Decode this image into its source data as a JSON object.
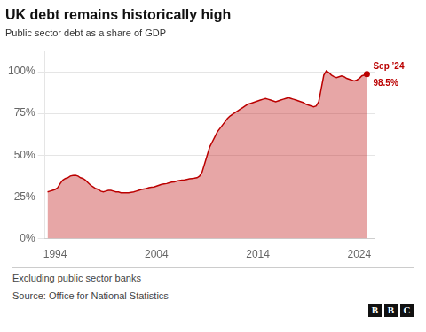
{
  "chart_data": {
    "type": "area",
    "title": "UK debt remains historically high",
    "subtitle": "Public sector debt as a share of GDP",
    "footnote": "Excluding public sector banks",
    "source": "Source: Office for National Statistics",
    "logo": "BBC",
    "annotations": [
      "Sep ’24",
      "98.5%"
    ],
    "color": "#bb0000",
    "grid": "y",
    "xlim": [
      1993.0,
      2025.5
    ],
    "xticks": [
      1994,
      2004,
      2014,
      2024
    ],
    "ylim": [
      0,
      112
    ],
    "yticks": [
      {
        "value": 0,
        "label": "0%"
      },
      {
        "value": 25,
        "label": "25%"
      },
      {
        "value": 50,
        "label": "50%"
      },
      {
        "value": 75,
        "label": "75%"
      },
      {
        "value": 100,
        "label": "100%"
      }
    ],
    "x": [
      1993.25,
      1993.5,
      1993.75,
      1994.0,
      1994.25,
      1994.5,
      1994.75,
      1995.0,
      1995.25,
      1995.5,
      1995.75,
      1996.0,
      1996.25,
      1996.5,
      1996.75,
      1997.0,
      1997.25,
      1997.5,
      1997.75,
      1998.0,
      1998.25,
      1998.5,
      1998.75,
      1999.0,
      1999.25,
      1999.5,
      1999.75,
      2000.0,
      2000.25,
      2000.5,
      2000.75,
      2001.0,
      2001.25,
      2001.5,
      2001.75,
      2002.0,
      2002.25,
      2002.5,
      2002.75,
      2003.0,
      2003.25,
      2003.5,
      2003.75,
      2004.0,
      2004.25,
      2004.5,
      2004.75,
      2005.0,
      2005.25,
      2005.5,
      2005.75,
      2006.0,
      2006.25,
      2006.5,
      2006.75,
      2007.0,
      2007.25,
      2007.5,
      2007.75,
      2008.0,
      2008.25,
      2008.5,
      2008.75,
      2009.0,
      2009.25,
      2009.5,
      2009.75,
      2010.0,
      2010.25,
      2010.5,
      2010.75,
      2011.0,
      2011.25,
      2011.5,
      2011.75,
      2012.0,
      2012.25,
      2012.5,
      2012.75,
      2013.0,
      2013.25,
      2013.5,
      2013.75,
      2014.0,
      2014.25,
      2014.5,
      2014.75,
      2015.0,
      2015.25,
      2015.5,
      2015.75,
      2016.0,
      2016.25,
      2016.5,
      2016.75,
      2017.0,
      2017.25,
      2017.5,
      2017.75,
      2018.0,
      2018.25,
      2018.5,
      2018.75,
      2019.0,
      2019.25,
      2019.5,
      2019.75,
      2020.0,
      2020.25,
      2020.5,
      2020.75,
      2021.0,
      2021.25,
      2021.5,
      2021.75,
      2022.0,
      2022.25,
      2022.5,
      2022.75,
      2023.0,
      2023.25,
      2023.5,
      2023.75,
      2024.0,
      2024.25,
      2024.5,
      2024.75
    ],
    "values": [
      28.0,
      28.5,
      29.0,
      29.5,
      30.5,
      33.0,
      35.0,
      36.0,
      36.5,
      37.5,
      37.8,
      38.0,
      37.5,
      36.5,
      36.0,
      35.0,
      33.5,
      32.0,
      31.0,
      30.0,
      29.5,
      28.5,
      28.0,
      28.5,
      29.0,
      29.0,
      28.5,
      28.0,
      28.0,
      27.5,
      27.5,
      27.5,
      27.5,
      27.8,
      28.0,
      28.5,
      29.0,
      29.5,
      29.8,
      30.0,
      30.5,
      30.8,
      31.0,
      31.5,
      32.0,
      32.5,
      32.8,
      33.0,
      33.5,
      33.8,
      34.0,
      34.5,
      34.8,
      35.0,
      35.2,
      35.5,
      35.8,
      36.0,
      36.2,
      36.5,
      37.5,
      40.0,
      45.0,
      50.0,
      55.0,
      58.0,
      61.0,
      64.0,
      66.0,
      68.0,
      70.0,
      72.0,
      73.5,
      74.5,
      75.5,
      76.5,
      77.5,
      78.5,
      79.5,
      80.5,
      81.0,
      81.5,
      82.0,
      82.5,
      83.0,
      83.5,
      84.0,
      83.5,
      83.0,
      82.5,
      82.0,
      82.5,
      83.0,
      83.5,
      84.0,
      84.5,
      84.0,
      83.5,
      83.0,
      82.5,
      82.0,
      81.5,
      80.5,
      80.0,
      79.5,
      79.0,
      79.5,
      82.0,
      90.0,
      98.0,
      100.5,
      99.5,
      98.0,
      97.0,
      96.5,
      97.0,
      97.5,
      97.0,
      96.0,
      95.5,
      95.0,
      94.5,
      95.0,
      96.0,
      97.5,
      98.0,
      98.5
    ]
  }
}
